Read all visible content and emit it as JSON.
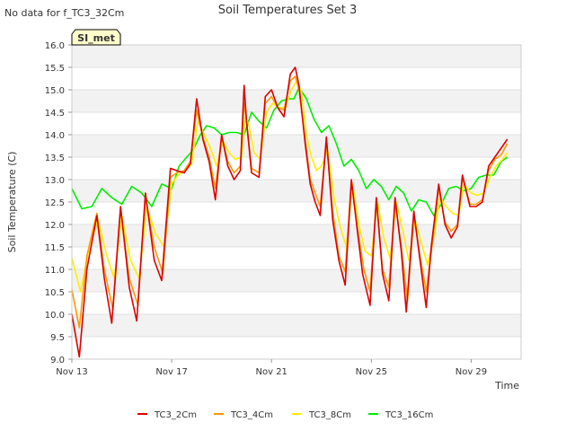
{
  "chart_data": {
    "type": "line",
    "title": "Soil Temperatures Set 3",
    "no_data_note": "No data for f_TC3_32Cm",
    "site_badge": "SI_met",
    "xlabel": "Time",
    "ylabel": "Soil Temperature (C)",
    "xlim": [
      0,
      18
    ],
    "ylim": [
      9.0,
      16.0
    ],
    "x_ticks": [
      {
        "x": 0,
        "label": "Nov 13"
      },
      {
        "x": 4,
        "label": "Nov 17"
      },
      {
        "x": 8,
        "label": "Nov 21"
      },
      {
        "x": 12,
        "label": "Nov 25"
      },
      {
        "x": 16,
        "label": "Nov 29"
      }
    ],
    "y_ticks": [
      {
        "v": 9.0,
        "label": "9.0"
      },
      {
        "v": 9.5,
        "label": "9.5"
      },
      {
        "v": 10.0,
        "label": "10.0"
      },
      {
        "v": 10.5,
        "label": "10.5"
      },
      {
        "v": 11.0,
        "label": "11.0"
      },
      {
        "v": 11.5,
        "label": "11.5"
      },
      {
        "v": 12.0,
        "label": "12.0"
      },
      {
        "v": 12.5,
        "label": "12.5"
      },
      {
        "v": 13.0,
        "label": "13.0"
      },
      {
        "v": 13.5,
        "label": "13.5"
      },
      {
        "v": 14.0,
        "label": "14.0"
      },
      {
        "v": 14.5,
        "label": "14.5"
      },
      {
        "v": 15.0,
        "label": "15.0"
      },
      {
        "v": 15.5,
        "label": "15.5"
      },
      {
        "v": 16.0,
        "label": "16.0"
      }
    ],
    "series": [
      {
        "name": "TC3_2Cm",
        "color": "#dd0000",
        "x": [
          0.0,
          0.3,
          0.6,
          1.0,
          1.3,
          1.6,
          1.95,
          2.3,
          2.6,
          2.95,
          3.3,
          3.6,
          3.95,
          4.2,
          4.5,
          4.75,
          5.0,
          5.25,
          5.5,
          5.75,
          6.0,
          6.25,
          6.5,
          6.75,
          6.9,
          7.0,
          7.2,
          7.5,
          7.75,
          8.0,
          8.25,
          8.5,
          8.75,
          8.95,
          9.1,
          9.35,
          9.55,
          9.75,
          9.95,
          10.2,
          10.45,
          10.7,
          10.95,
          11.2,
          11.45,
          11.65,
          11.95,
          12.2,
          12.45,
          12.7,
          12.95,
          13.2,
          13.4,
          13.7,
          13.95,
          14.2,
          14.4,
          14.7,
          14.95,
          15.2,
          15.45,
          15.65,
          15.95,
          16.2,
          16.45,
          16.7,
          16.95,
          17.2,
          17.45
        ],
        "y": [
          10.0,
          9.05,
          11.0,
          12.2,
          10.8,
          9.8,
          12.4,
          10.6,
          9.85,
          12.7,
          11.2,
          10.75,
          13.25,
          13.2,
          13.15,
          13.35,
          14.8,
          13.9,
          13.4,
          12.55,
          14.0,
          13.3,
          13.0,
          13.2,
          15.1,
          14.3,
          13.15,
          13.05,
          14.85,
          15.0,
          14.6,
          14.4,
          15.35,
          15.5,
          15.1,
          13.8,
          12.9,
          12.5,
          12.2,
          13.95,
          12.1,
          11.2,
          10.65,
          13.0,
          11.8,
          10.9,
          10.2,
          12.6,
          10.9,
          10.3,
          12.6,
          11.4,
          10.05,
          12.3,
          11.2,
          10.15,
          11.5,
          12.9,
          12.0,
          11.7,
          11.95,
          13.1,
          12.4,
          12.4,
          12.5,
          13.3,
          13.5,
          13.7,
          13.9
        ]
      },
      {
        "name": "TC3_4Cm",
        "color": "#ff9900",
        "x": [
          0.0,
          0.3,
          0.6,
          1.0,
          1.3,
          1.65,
          1.95,
          2.3,
          2.65,
          2.95,
          3.3,
          3.65,
          3.95,
          4.2,
          4.5,
          4.75,
          5.0,
          5.25,
          5.5,
          5.75,
          6.0,
          6.25,
          6.5,
          6.75,
          6.9,
          7.0,
          7.2,
          7.5,
          7.75,
          8.0,
          8.25,
          8.5,
          8.75,
          8.95,
          9.1,
          9.35,
          9.55,
          9.75,
          9.95,
          10.2,
          10.45,
          10.7,
          10.95,
          11.2,
          11.45,
          11.7,
          11.95,
          12.2,
          12.45,
          12.7,
          12.95,
          13.2,
          13.45,
          13.7,
          13.95,
          14.2,
          14.45,
          14.7,
          14.95,
          15.2,
          15.45,
          15.65,
          15.95,
          16.2,
          16.45,
          16.7,
          16.95,
          17.2,
          17.45
        ],
        "y": [
          10.55,
          9.7,
          11.3,
          12.25,
          11.0,
          10.1,
          12.35,
          10.8,
          10.2,
          12.6,
          11.5,
          10.9,
          13.05,
          13.15,
          13.2,
          13.4,
          14.55,
          13.95,
          13.5,
          12.8,
          13.95,
          13.4,
          13.15,
          13.3,
          14.7,
          14.3,
          13.25,
          13.15,
          14.7,
          14.85,
          14.6,
          14.55,
          15.2,
          15.3,
          15.0,
          13.9,
          13.0,
          12.7,
          12.4,
          13.85,
          12.3,
          11.3,
          10.95,
          12.95,
          11.9,
          11.0,
          10.5,
          12.55,
          11.0,
          10.6,
          12.5,
          11.5,
          10.3,
          12.2,
          11.3,
          10.5,
          11.6,
          12.8,
          12.05,
          11.85,
          12.0,
          13.05,
          12.45,
          12.45,
          12.55,
          13.2,
          13.45,
          13.55,
          13.8
        ]
      },
      {
        "name": "TC3_8Cm",
        "color": "#ffee00",
        "x": [
          0.0,
          0.35,
          0.7,
          1.05,
          1.4,
          1.7,
          2.0,
          2.35,
          2.7,
          3.0,
          3.35,
          3.7,
          4.0,
          4.25,
          4.55,
          4.8,
          5.05,
          5.3,
          5.55,
          5.8,
          6.05,
          6.3,
          6.55,
          6.8,
          6.95,
          7.1,
          7.3,
          7.55,
          7.8,
          8.05,
          8.3,
          8.55,
          8.8,
          9.0,
          9.2,
          9.4,
          9.6,
          9.8,
          10.0,
          10.25,
          10.5,
          10.75,
          11.0,
          11.25,
          11.5,
          11.75,
          12.0,
          12.25,
          12.5,
          12.75,
          13.0,
          13.25,
          13.5,
          13.75,
          14.0,
          14.25,
          14.5,
          14.75,
          15.0,
          15.25,
          15.5,
          15.7,
          16.0,
          16.25,
          16.5,
          16.75,
          17.0,
          17.25,
          17.45
        ],
        "y": [
          11.25,
          10.5,
          11.5,
          12.1,
          11.3,
          10.8,
          12.2,
          11.2,
          10.8,
          12.4,
          11.8,
          11.5,
          12.9,
          13.1,
          13.2,
          13.35,
          14.3,
          14.0,
          13.7,
          13.3,
          13.85,
          13.6,
          13.45,
          13.5,
          14.4,
          14.2,
          13.6,
          13.45,
          14.5,
          14.7,
          14.6,
          14.6,
          15.0,
          15.2,
          14.95,
          14.0,
          13.5,
          13.2,
          13.3,
          13.65,
          12.6,
          11.95,
          11.5,
          12.9,
          12.0,
          11.4,
          11.3,
          12.5,
          11.7,
          11.25,
          12.5,
          11.9,
          11.2,
          12.1,
          11.6,
          11.1,
          11.7,
          12.6,
          12.4,
          12.25,
          12.2,
          12.9,
          12.7,
          12.65,
          12.7,
          13.05,
          13.3,
          13.45,
          13.6
        ]
      },
      {
        "name": "TC3_16Cm",
        "color": "#00ee00",
        "x": [
          0.0,
          0.4,
          0.8,
          1.2,
          1.6,
          2.0,
          2.4,
          2.8,
          3.2,
          3.6,
          4.0,
          4.3,
          4.6,
          4.85,
          5.15,
          5.4,
          5.7,
          6.0,
          6.3,
          6.6,
          6.9,
          7.2,
          7.5,
          7.8,
          8.1,
          8.4,
          8.7,
          8.9,
          9.1,
          9.4,
          9.7,
          10.0,
          10.3,
          10.6,
          10.9,
          11.2,
          11.5,
          11.8,
          12.1,
          12.4,
          12.7,
          13.0,
          13.3,
          13.6,
          13.9,
          14.2,
          14.5,
          14.8,
          15.1,
          15.4,
          15.7,
          16.0,
          16.3,
          16.6,
          16.9,
          17.2,
          17.45
        ],
        "y": [
          12.8,
          12.35,
          12.4,
          12.8,
          12.6,
          12.45,
          12.85,
          12.7,
          12.4,
          12.9,
          12.8,
          13.3,
          13.5,
          13.65,
          14.0,
          14.2,
          14.15,
          14.0,
          14.05,
          14.05,
          14.0,
          14.5,
          14.3,
          14.15,
          14.55,
          14.75,
          14.8,
          14.8,
          15.05,
          14.8,
          14.35,
          14.05,
          14.2,
          13.8,
          13.3,
          13.45,
          13.2,
          12.8,
          13.0,
          12.85,
          12.55,
          12.85,
          12.7,
          12.3,
          12.55,
          12.5,
          12.2,
          12.45,
          12.8,
          12.85,
          12.75,
          12.8,
          13.05,
          13.1,
          13.1,
          13.4,
          13.5
        ]
      }
    ]
  }
}
